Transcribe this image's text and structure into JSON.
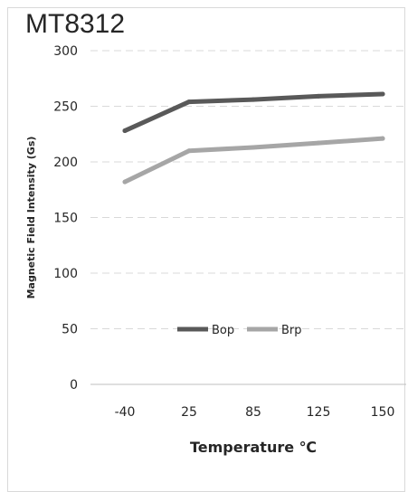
{
  "chart_data": {
    "type": "line",
    "title": "MT8312",
    "xlabel": "Temperature ℃",
    "ylabel": "Magnetic Field Intensity (Gs)",
    "categories": [
      "-40",
      "25",
      "85",
      "125",
      "150"
    ],
    "ylim": [
      0,
      300
    ],
    "yticks": [
      "0",
      "50",
      "100",
      "150",
      "200",
      "250",
      "300"
    ],
    "grid": true,
    "legend_position": "center",
    "series": [
      {
        "name": "Bop",
        "color": "#595959",
        "values": [
          228,
          254,
          256,
          259,
          261
        ]
      },
      {
        "name": "Brp",
        "color": "#a6a6a6",
        "values": [
          182,
          210,
          213,
          217,
          221
        ]
      }
    ]
  }
}
